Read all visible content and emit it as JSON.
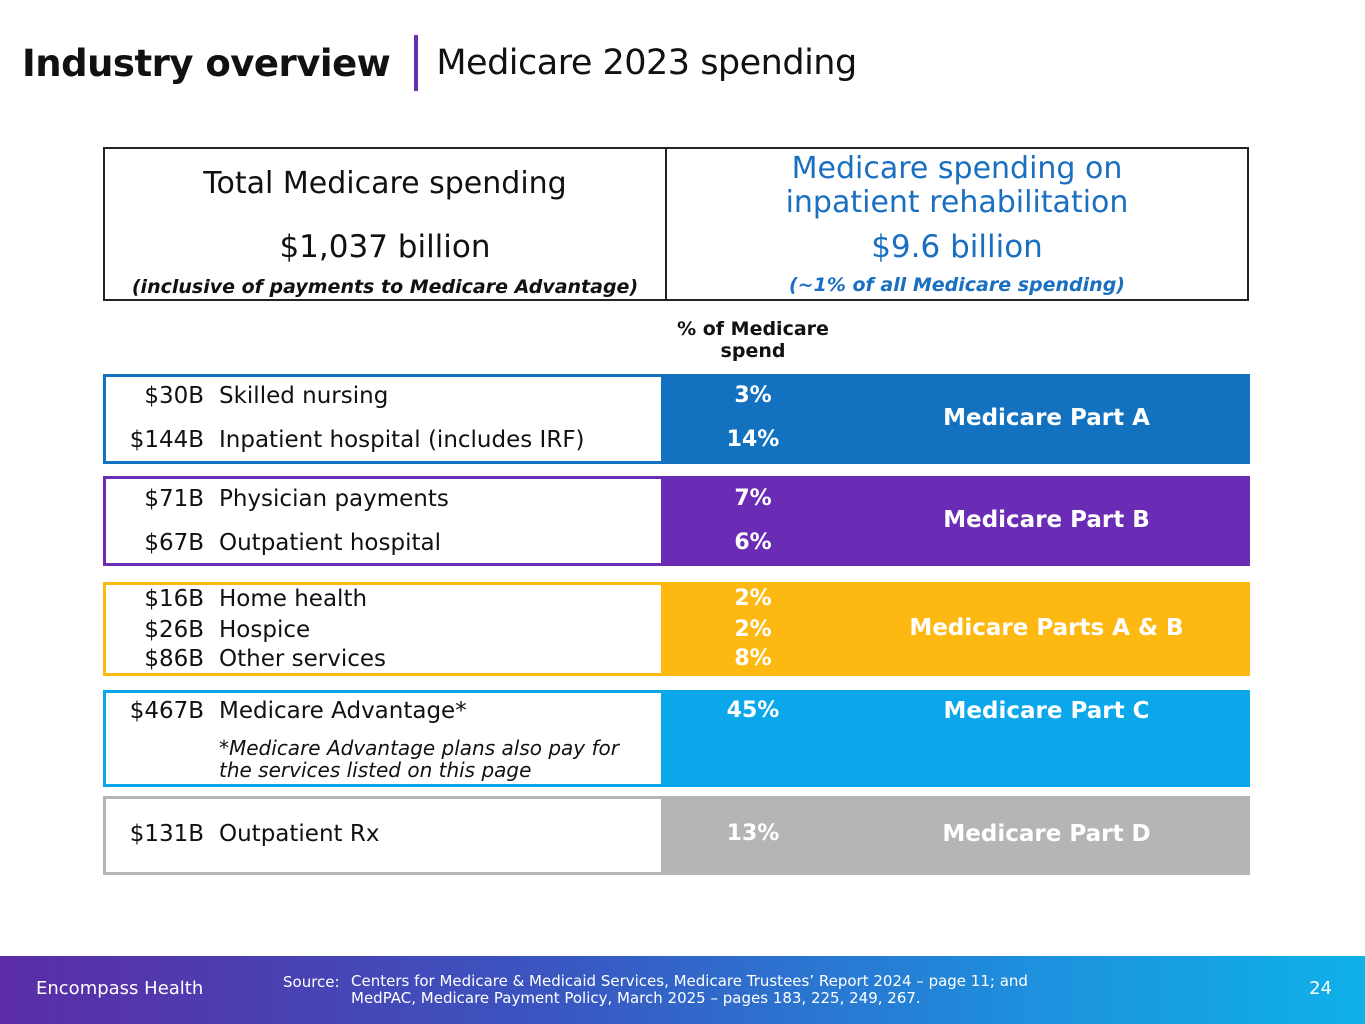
{
  "header": {
    "title": "Industry overview",
    "subtitle": "Medicare 2023 spending"
  },
  "summary": {
    "left": {
      "heading": "Total Medicare spending",
      "value": "$1,037 billion",
      "note": "(inclusive of payments to Medicare Advantage)"
    },
    "right": {
      "heading_line1": "Medicare spending on",
      "heading_line2": "inpatient rehabilitation",
      "value": "$9.6 billion",
      "note": "(~1% of all Medicare spending)"
    }
  },
  "column_header": {
    "line1": "% of Medicare",
    "line2": "spend"
  },
  "bands": [
    {
      "part": "Medicare Part A",
      "color": "#1272c0",
      "rows": [
        {
          "amount": "$30B",
          "label": "Skilled nursing",
          "pct": "3%"
        },
        {
          "amount": "$144B",
          "label": "Inpatient hospital (includes IRF)",
          "pct": "14%"
        }
      ]
    },
    {
      "part": "Medicare Part B",
      "color": "#6a2bb5",
      "rows": [
        {
          "amount": "$71B",
          "label": "Physician payments",
          "pct": "7%"
        },
        {
          "amount": "$67B",
          "label": "Outpatient hospital",
          "pct": "6%"
        }
      ]
    },
    {
      "part": "Medicare Parts A & B",
      "color": "#fdb812",
      "rows": [
        {
          "amount": "$16B",
          "label": "Home health",
          "pct": "2%"
        },
        {
          "amount": "$26B",
          "label": "Hospice",
          "pct": "2%"
        },
        {
          "amount": "$86B",
          "label": "Other services",
          "pct": "8%"
        }
      ]
    },
    {
      "part": "Medicare Part C",
      "color": "#0aa8ea",
      "rows": [
        {
          "amount": "$467B",
          "label": "Medicare Advantage*",
          "pct": "45%"
        }
      ],
      "note_line1": "*Medicare Advantage plans also pay for",
      "note_line2": "the services listed on this page"
    },
    {
      "part": "Medicare Part D",
      "color": "#b5b5b5",
      "rows": [
        {
          "amount": "$131B",
          "label": "Outpatient Rx",
          "pct": "13%"
        }
      ]
    }
  ],
  "footer": {
    "brand": "Encompass Health",
    "source_label": "Source:",
    "source_line1": "Centers for Medicare & Medicaid Services, Medicare Trustees’ Report 2024 – page 11; and",
    "source_line2": "MedPAC, Medicare Payment Policy, March 2025 – pages 183, 225, 249, 267.",
    "page": "24"
  }
}
